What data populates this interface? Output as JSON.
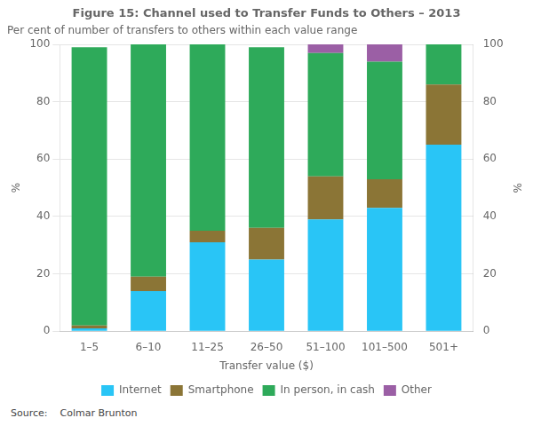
{
  "chart_data": {
    "type": "bar",
    "stacked": true,
    "title": "Figure 15: Channel used to Transfer Funds to Others – 2013",
    "subtitle": "Per cent of number of transfers to others within each value range",
    "xlabel": "Transfer value ($)",
    "ylabel": "%",
    "y2label": "%",
    "source": "Source:    Colmar Brunton",
    "categories": [
      "1–5",
      "6–10",
      "11–25",
      "26–50",
      "51–100",
      "101–500",
      "501+"
    ],
    "series": [
      {
        "name": "Internet",
        "color": "#29C5F6",
        "values": [
          1,
          14,
          31,
          25,
          39,
          43,
          65
        ]
      },
      {
        "name": "Smartphone",
        "color": "#8B7536",
        "values": [
          1,
          5,
          4,
          11,
          15,
          10,
          21
        ]
      },
      {
        "name": "In person, in cash",
        "color": "#2EAA5A",
        "values": [
          97,
          81,
          65,
          63,
          43,
          41,
          14
        ]
      },
      {
        "name": "Other",
        "color": "#9B5FA5",
        "values": [
          0,
          0,
          0,
          0,
          3,
          6,
          0
        ]
      }
    ],
    "ylim": [
      0,
      100
    ],
    "yticks": [
      0,
      20,
      40,
      60,
      80,
      100
    ],
    "y2lim": [
      0,
      100
    ],
    "y2ticks": [
      0,
      20,
      40,
      60,
      80,
      100
    ],
    "grid": true,
    "legend": "bottom"
  }
}
